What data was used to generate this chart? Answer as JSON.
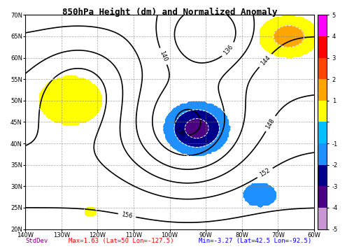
{
  "title": "850hPa Height (dm) and Normalized Anomaly",
  "xlim": [
    -140,
    -60
  ],
  "ylim": [
    20,
    70
  ],
  "xticks": [
    -140,
    -130,
    -120,
    -110,
    -100,
    -90,
    -80,
    -70,
    -60
  ],
  "yticks": [
    20,
    25,
    30,
    35,
    40,
    45,
    50,
    55,
    60,
    65,
    70
  ],
  "xticklabels": [
    "140W",
    "130W",
    "120W",
    "110W",
    "100W",
    "90W",
    "80W",
    "70W",
    "60W"
  ],
  "yticklabels": [
    "20N",
    "25N",
    "30N",
    "35N",
    "40N",
    "45N",
    "50N",
    "55N",
    "60N",
    "65N",
    "70N"
  ],
  "colorbar_levels": [
    -5,
    -4,
    -3,
    -2,
    -1,
    1,
    2,
    3,
    4,
    5
  ],
  "colorbar_colors": [
    "#c8a0d8",
    "#4b0082",
    "#00008b",
    "#0000ff",
    "#00bfff",
    "#ffff00",
    "#ffa500",
    "#ff4500",
    "#ff0000",
    "#ff00ff"
  ],
  "anomaly_colors_neg": [
    "#c8a0d8",
    "#4b0082",
    "#00008b",
    "#0000ff",
    "#00bfff"
  ],
  "anomaly_colors_pos": [
    "#ffff00",
    "#ffff00",
    "#ffa500",
    "#ff4500",
    "#ff00ff"
  ],
  "bottom_text_stddev": "StdDev",
  "bottom_text_max": "Max=1.63 (Lat=50 Lon=-127.5)",
  "bottom_text_min": "Min=-3.27 (Lat=42.5 Lon=-92.5)",
  "bg_color": "#ffffff",
  "map_bg": "#ffffff",
  "contour_color": "#000000",
  "height_levels": [
    136,
    140,
    144,
    148,
    152
  ],
  "height_label_color": "#000000"
}
